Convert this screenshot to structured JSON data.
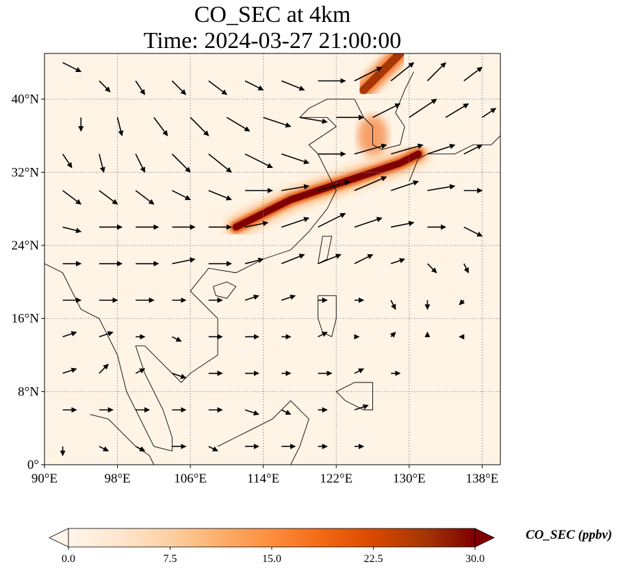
{
  "title_line1": "CO_SEC at 4km",
  "title_line2": "Time: 2024-03-27 21:00:00",
  "map": {
    "lon_range": [
      90,
      140
    ],
    "lat_range": [
      0,
      45
    ],
    "lon_ticks": [
      "90°E",
      "98°E",
      "106°E",
      "114°E",
      "122°E",
      "130°E",
      "138°E"
    ],
    "lat_ticks": [
      "0°",
      "8°N",
      "16°N",
      "24°N",
      "32°N",
      "40°N"
    ],
    "gridlines": "dotted"
  },
  "colorbar": {
    "label": "CO_SEC (ppbv)",
    "ticks": [
      "0.0",
      "7.5",
      "15.0",
      "22.5",
      "30.0"
    ],
    "range": [
      0,
      30
    ],
    "extend": "both",
    "colormap": [
      "#fff5eb",
      "#fee6ce",
      "#fdd0a2",
      "#fdae6b",
      "#fd8d3c",
      "#f16913",
      "#d94801",
      "#a63603",
      "#7f0000"
    ]
  },
  "plume": {
    "max_color": "#7f0000",
    "core": [
      [
        111,
        26
      ],
      [
        114,
        27.5
      ],
      [
        117,
        29
      ],
      [
        120,
        30
      ],
      [
        123,
        31
      ],
      [
        126,
        32
      ],
      [
        129,
        33
      ],
      [
        131,
        34
      ]
    ],
    "north_branch": [
      [
        125,
        41
      ],
      [
        127,
        43
      ],
      [
        129,
        45
      ]
    ]
  },
  "coastlines": {
    "asia_east": [
      [
        90,
        22
      ],
      [
        92,
        21
      ],
      [
        94,
        17
      ],
      [
        96,
        16
      ],
      [
        98,
        12
      ],
      [
        99,
        8
      ],
      [
        100,
        6
      ],
      [
        102,
        2
      ],
      [
        104,
        1.5
      ],
      [
        104,
        3
      ],
      [
        103,
        6
      ],
      [
        101,
        10
      ],
      [
        100,
        13
      ],
      [
        101,
        13
      ],
      [
        103,
        11
      ],
      [
        105,
        9
      ],
      [
        106,
        10
      ],
      [
        109,
        12
      ],
      [
        109,
        16
      ],
      [
        106,
        19
      ],
      [
        108,
        21.5
      ],
      [
        111,
        21
      ],
      [
        114,
        22.5
      ],
      [
        117,
        23.5
      ],
      [
        119,
        25.5
      ],
      [
        121,
        28
      ],
      [
        122,
        30
      ],
      [
        121,
        32
      ],
      [
        120,
        34
      ],
      [
        119,
        35
      ],
      [
        122,
        37
      ],
      [
        121,
        38
      ],
      [
        118,
        38
      ],
      [
        119,
        39
      ],
      [
        121,
        40
      ],
      [
        122,
        40
      ],
      [
        124,
        40
      ]
    ],
    "korea": [
      [
        124,
        40
      ],
      [
        125,
        38
      ],
      [
        126,
        37
      ],
      [
        126,
        35
      ],
      [
        127,
        34.5
      ],
      [
        129,
        35
      ],
      [
        129.5,
        37
      ],
      [
        128.5,
        38.5
      ],
      [
        129.5,
        41
      ],
      [
        130.5,
        43
      ]
    ],
    "japan": [
      [
        130,
        31
      ],
      [
        131,
        33.5
      ],
      [
        132,
        34
      ],
      [
        133,
        34
      ],
      [
        135,
        34
      ],
      [
        137,
        35
      ],
      [
        139,
        35
      ],
      [
        140,
        36
      ]
    ],
    "taiwan": [
      [
        120,
        22
      ],
      [
        120.5,
        25
      ],
      [
        121.5,
        25
      ],
      [
        121,
        22.5
      ],
      [
        120,
        22
      ]
    ],
    "hainan": [
      [
        108.5,
        19.5
      ],
      [
        110,
        20
      ],
      [
        111,
        19.5
      ],
      [
        110,
        18.2
      ],
      [
        108.8,
        18.5
      ],
      [
        108.5,
        19.5
      ]
    ],
    "luzon": [
      [
        120,
        18.5
      ],
      [
        122,
        18.5
      ],
      [
        122,
        16
      ],
      [
        121.5,
        14
      ],
      [
        120.5,
        14.5
      ],
      [
        120,
        16
      ],
      [
        120,
        18.5
      ]
    ],
    "mindanao": [
      [
        122,
        8
      ],
      [
        124,
        9
      ],
      [
        126,
        9
      ],
      [
        126,
        6
      ],
      [
        125,
        6
      ],
      [
        123,
        7
      ],
      [
        122,
        8
      ]
    ],
    "borneo": [
      [
        109,
        2
      ],
      [
        111,
        3
      ],
      [
        113,
        4
      ],
      [
        115,
        5
      ],
      [
        117,
        7
      ],
      [
        119,
        5
      ],
      [
        118,
        2
      ],
      [
        117,
        0
      ]
    ],
    "sumatra": [
      [
        95,
        5.5
      ],
      [
        97,
        5
      ],
      [
        98.5,
        3.5
      ],
      [
        100,
        2
      ],
      [
        101.5,
        1
      ],
      [
        102,
        0
      ]
    ]
  },
  "wind": {
    "note": "vectors in lon/lat units",
    "vectors": [
      [
        92,
        44,
        2,
        -1
      ],
      [
        96,
        42,
        1.2,
        -1.2
      ],
      [
        100,
        42,
        1,
        -1.5
      ],
      [
        104,
        42,
        1.5,
        -1.5
      ],
      [
        108,
        42,
        2,
        -1.5
      ],
      [
        112,
        42,
        2,
        -1
      ],
      [
        116,
        42,
        2.5,
        -1
      ],
      [
        120,
        42,
        3,
        0
      ],
      [
        124,
        42,
        3,
        1.5
      ],
      [
        128,
        42,
        2.5,
        2
      ],
      [
        132,
        42,
        2,
        2
      ],
      [
        136,
        42,
        2,
        1.5
      ],
      [
        94,
        38,
        0,
        -1.5
      ],
      [
        98,
        38,
        0.5,
        -2
      ],
      [
        102,
        38,
        1.5,
        -2
      ],
      [
        106,
        38,
        2,
        -2
      ],
      [
        110,
        38,
        2.5,
        -1.5
      ],
      [
        114,
        38,
        3,
        -1
      ],
      [
        118,
        38,
        3,
        -0.5
      ],
      [
        122,
        38,
        3,
        0
      ],
      [
        126,
        38,
        3,
        1.5
      ],
      [
        130,
        38,
        3,
        2
      ],
      [
        134,
        38,
        2.5,
        1.5
      ],
      [
        138,
        38,
        1.5,
        1
      ],
      [
        92,
        34,
        1,
        -1.5
      ],
      [
        96,
        34,
        0.5,
        -2
      ],
      [
        100,
        34,
        1,
        -2
      ],
      [
        104,
        34,
        2,
        -2
      ],
      [
        108,
        34,
        2.5,
        -2
      ],
      [
        112,
        34,
        3,
        -1.5
      ],
      [
        116,
        34,
        3,
        -1
      ],
      [
        120,
        34,
        3,
        0
      ],
      [
        124,
        34,
        3.5,
        1
      ],
      [
        128,
        34,
        3.5,
        1
      ],
      [
        132,
        34,
        3,
        1
      ],
      [
        136,
        34,
        2,
        1
      ],
      [
        92,
        30,
        2,
        -1.5
      ],
      [
        96,
        30,
        2,
        -1.5
      ],
      [
        100,
        30,
        2,
        -1.5
      ],
      [
        104,
        30,
        2,
        -1
      ],
      [
        108,
        30,
        2.5,
        -1
      ],
      [
        112,
        30,
        3,
        0
      ],
      [
        116,
        30,
        3,
        0.5
      ],
      [
        120,
        30,
        3.5,
        1
      ],
      [
        124,
        30,
        3.5,
        1.5
      ],
      [
        128,
        30,
        3,
        1
      ],
      [
        132,
        30,
        3,
        0.5
      ],
      [
        136,
        30,
        2,
        0
      ],
      [
        92,
        26,
        2,
        -0.5
      ],
      [
        96,
        26,
        2.5,
        0
      ],
      [
        100,
        26,
        2.5,
        0
      ],
      [
        104,
        26,
        2.5,
        0
      ],
      [
        108,
        26,
        2.5,
        0
      ],
      [
        112,
        26,
        2.5,
        0.5
      ],
      [
        116,
        26,
        3,
        1
      ],
      [
        120,
        26,
        3,
        1.5
      ],
      [
        124,
        26,
        3,
        1
      ],
      [
        128,
        26,
        2.5,
        0.5
      ],
      [
        132,
        26,
        2,
        0
      ],
      [
        136,
        26,
        2,
        -1
      ],
      [
        92,
        22,
        2,
        0
      ],
      [
        96,
        22,
        2.5,
        0
      ],
      [
        100,
        22,
        2.5,
        0
      ],
      [
        104,
        22,
        2.5,
        0.5
      ],
      [
        108,
        22,
        2.5,
        0
      ],
      [
        112,
        22,
        2,
        0.5
      ],
      [
        116,
        22,
        2.5,
        1
      ],
      [
        120,
        22,
        2.5,
        1
      ],
      [
        124,
        22,
        2,
        1
      ],
      [
        128,
        22,
        1.5,
        0.5
      ],
      [
        132,
        22,
        1,
        -1
      ],
      [
        136,
        22,
        0.5,
        -1
      ],
      [
        92,
        18,
        2,
        0
      ],
      [
        96,
        18,
        2,
        0
      ],
      [
        100,
        18,
        2,
        0
      ],
      [
        104,
        18,
        1.5,
        0
      ],
      [
        108,
        18,
        1.5,
        0
      ],
      [
        112,
        18,
        1.5,
        0.5
      ],
      [
        116,
        18,
        1.5,
        0.5
      ],
      [
        120,
        18,
        1,
        0
      ],
      [
        124,
        18,
        1,
        0
      ],
      [
        128,
        18,
        0.5,
        -1
      ],
      [
        132,
        18,
        0,
        -1
      ],
      [
        136,
        18,
        -0.5,
        -0.5
      ],
      [
        92,
        14,
        1.5,
        0.5
      ],
      [
        96,
        14,
        1.5,
        0.5
      ],
      [
        100,
        14,
        1,
        0
      ],
      [
        104,
        14,
        1,
        -0.5
      ],
      [
        108,
        14,
        1.5,
        0
      ],
      [
        112,
        14,
        1.5,
        0
      ],
      [
        116,
        14,
        1,
        0
      ],
      [
        120,
        14,
        1,
        0.5
      ],
      [
        124,
        14,
        0.5,
        0
      ],
      [
        128,
        14,
        0.5,
        0.5
      ],
      [
        132,
        14,
        0,
        0.5
      ],
      [
        136,
        14,
        -0.5,
        0
      ],
      [
        92,
        10,
        1.5,
        0.5
      ],
      [
        96,
        10,
        1,
        1
      ],
      [
        100,
        10,
        1,
        0.5
      ],
      [
        104,
        10,
        1.5,
        -0.5
      ],
      [
        108,
        10,
        1.5,
        0
      ],
      [
        112,
        10,
        1.5,
        0
      ],
      [
        116,
        10,
        1,
        0
      ],
      [
        120,
        10,
        1.5,
        0
      ],
      [
        124,
        10,
        1,
        0.5
      ],
      [
        128,
        10,
        1,
        0
      ],
      [
        92,
        6,
        1.5,
        0
      ],
      [
        96,
        6,
        1.5,
        0
      ],
      [
        100,
        6,
        1.5,
        0
      ],
      [
        104,
        6,
        1.5,
        0
      ],
      [
        108,
        6,
        1.5,
        0
      ],
      [
        112,
        6,
        1.5,
        -0.5
      ],
      [
        116,
        6,
        1,
        -0.5
      ],
      [
        120,
        6,
        1,
        0
      ],
      [
        124,
        6,
        1.5,
        0.5
      ],
      [
        92,
        2,
        0,
        -1
      ],
      [
        96,
        2,
        1,
        -0.5
      ],
      [
        100,
        2,
        1,
        -0.5
      ],
      [
        104,
        2,
        1.5,
        0
      ],
      [
        108,
        2,
        1,
        -0.5
      ],
      [
        112,
        2,
        1.5,
        0
      ],
      [
        116,
        2,
        1.5,
        0
      ],
      [
        120,
        2,
        1,
        0
      ],
      [
        124,
        2,
        1,
        0
      ]
    ]
  }
}
